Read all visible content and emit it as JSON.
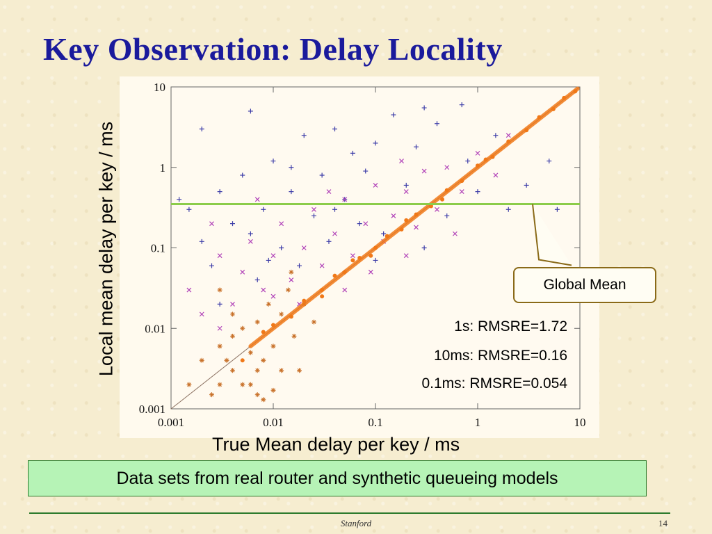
{
  "slide": {
    "title": "Key Observation: Delay Locality",
    "bottom_note": "Data sets from real router and synthetic queueing models",
    "footer": "Stanford",
    "page_number": "14"
  },
  "annotation": {
    "callout": "Global Mean",
    "rmsre_lines": [
      "1s: RMSRE=1.72",
      "10ms: RMSRE=0.16",
      "0.1ms: RMSRE=0.054"
    ]
  },
  "chart_data": {
    "type": "scatter",
    "xlabel": "True Mean delay per key / ms",
    "ylabel": "Local mean delay per key / ms",
    "xscale": "log",
    "yscale": "log",
    "xlim": [
      0.001,
      10
    ],
    "ylim": [
      0.001,
      10
    ],
    "x_ticks": [
      "0.001",
      "0.01",
      "0.1",
      "1",
      "10"
    ],
    "y_ticks": [
      "10",
      "1",
      "0.1",
      "0.01",
      "0.001"
    ],
    "grid": false,
    "reference_line": {
      "type": "diagonal",
      "from": [
        0.001,
        0.001
      ],
      "to": [
        10,
        10
      ]
    },
    "horizontal_line": {
      "y": 0.35,
      "color": "#8ccc4a"
    },
    "series": [
      {
        "marker": "+",
        "color": "#3c3ca8",
        "points": [
          [
            0.0015,
            0.3
          ],
          [
            0.002,
            0.12
          ],
          [
            0.0025,
            0.06
          ],
          [
            0.003,
            0.5
          ],
          [
            0.004,
            0.2
          ],
          [
            0.005,
            0.8
          ],
          [
            0.006,
            0.15
          ],
          [
            0.007,
            0.04
          ],
          [
            0.008,
            0.3
          ],
          [
            0.01,
            1.2
          ],
          [
            0.012,
            0.1
          ],
          [
            0.015,
            0.5
          ],
          [
            0.018,
            0.06
          ],
          [
            0.02,
            2.5
          ],
          [
            0.025,
            0.25
          ],
          [
            0.03,
            0.8
          ],
          [
            0.035,
            0.12
          ],
          [
            0.04,
            3.0
          ],
          [
            0.05,
            0.4
          ],
          [
            0.06,
            1.5
          ],
          [
            0.07,
            0.2
          ],
          [
            0.08,
            0.9
          ],
          [
            0.1,
            2.0
          ],
          [
            0.12,
            0.15
          ],
          [
            0.15,
            4.5
          ],
          [
            0.2,
            0.6
          ],
          [
            0.25,
            1.8
          ],
          [
            0.3,
            0.1
          ],
          [
            0.4,
            3.5
          ],
          [
            0.5,
            0.25
          ],
          [
            0.7,
            6.0
          ],
          [
            1.0,
            0.5
          ],
          [
            1.5,
            2.5
          ],
          [
            2.0,
            0.3
          ],
          [
            3.0,
            0.6
          ],
          [
            5.0,
            1.2
          ],
          [
            6.0,
            0.3
          ],
          [
            0.003,
            0.02
          ],
          [
            0.009,
            0.07
          ],
          [
            0.05,
            0.05
          ],
          [
            0.002,
            3.0
          ],
          [
            0.006,
            5.0
          ],
          [
            0.02,
            0.02
          ],
          [
            0.1,
            0.07
          ],
          [
            0.3,
            5.5
          ],
          [
            0.8,
            1.2
          ],
          [
            4.0,
            0.12
          ],
          [
            0.015,
            1.0
          ],
          [
            0.0012,
            0.4
          ],
          [
            0.04,
            0.3
          ]
        ]
      },
      {
        "marker": "×",
        "color": "#b040b8",
        "points": [
          [
            0.0015,
            0.03
          ],
          [
            0.002,
            0.015
          ],
          [
            0.003,
            0.08
          ],
          [
            0.004,
            0.02
          ],
          [
            0.005,
            0.05
          ],
          [
            0.006,
            0.12
          ],
          [
            0.008,
            0.03
          ],
          [
            0.01,
            0.08
          ],
          [
            0.012,
            0.2
          ],
          [
            0.015,
            0.04
          ],
          [
            0.02,
            0.1
          ],
          [
            0.025,
            0.3
          ],
          [
            0.03,
            0.06
          ],
          [
            0.04,
            0.15
          ],
          [
            0.05,
            0.4
          ],
          [
            0.06,
            0.08
          ],
          [
            0.08,
            0.2
          ],
          [
            0.1,
            0.6
          ],
          [
            0.12,
            0.12
          ],
          [
            0.15,
            0.25
          ],
          [
            0.2,
            0.5
          ],
          [
            0.25,
            0.18
          ],
          [
            0.3,
            0.9
          ],
          [
            0.4,
            0.3
          ],
          [
            0.5,
            1.0
          ],
          [
            0.7,
            0.5
          ],
          [
            1.0,
            1.5
          ],
          [
            1.5,
            0.8
          ],
          [
            2.0,
            2.5
          ],
          [
            0.0025,
            0.2
          ],
          [
            0.007,
            0.4
          ],
          [
            0.018,
            0.02
          ],
          [
            0.035,
            0.5
          ],
          [
            0.09,
            0.05
          ],
          [
            0.18,
            1.2
          ],
          [
            0.6,
            0.15
          ],
          [
            0.003,
            0.01
          ],
          [
            0.01,
            0.025
          ],
          [
            0.05,
            0.03
          ],
          [
            0.2,
            0.08
          ]
        ]
      },
      {
        "marker": "*",
        "color": "#c87028",
        "points": [
          [
            0.0015,
            0.002
          ],
          [
            0.002,
            0.004
          ],
          [
            0.0025,
            0.0015
          ],
          [
            0.003,
            0.006
          ],
          [
            0.003,
            0.002
          ],
          [
            0.004,
            0.003
          ],
          [
            0.004,
            0.008
          ],
          [
            0.005,
            0.002
          ],
          [
            0.005,
            0.01
          ],
          [
            0.006,
            0.005
          ],
          [
            0.007,
            0.0015
          ],
          [
            0.007,
            0.012
          ],
          [
            0.008,
            0.004
          ],
          [
            0.009,
            0.02
          ],
          [
            0.01,
            0.006
          ],
          [
            0.012,
            0.015
          ],
          [
            0.014,
            0.03
          ],
          [
            0.016,
            0.008
          ],
          [
            0.02,
            0.02
          ],
          [
            0.025,
            0.012
          ],
          [
            0.006,
            0.002
          ],
          [
            0.008,
            0.0013
          ],
          [
            0.01,
            0.0017
          ],
          [
            0.012,
            0.003
          ],
          [
            0.018,
            0.003
          ],
          [
            0.004,
            0.015
          ],
          [
            0.003,
            0.03
          ],
          [
            0.015,
            0.05
          ],
          [
            0.007,
            0.003
          ],
          [
            0.0035,
            0.004
          ]
        ]
      },
      {
        "marker": "•",
        "color": "#f07818",
        "points": [
          [
            0.005,
            0.004
          ],
          [
            0.008,
            0.009
          ],
          [
            0.01,
            0.011
          ],
          [
            0.015,
            0.014
          ],
          [
            0.02,
            0.022
          ],
          [
            0.03,
            0.03
          ],
          [
            0.04,
            0.045
          ],
          [
            0.05,
            0.05
          ],
          [
            0.07,
            0.075
          ],
          [
            0.1,
            0.1
          ],
          [
            0.13,
            0.14
          ],
          [
            0.18,
            0.17
          ],
          [
            0.25,
            0.26
          ],
          [
            0.35,
            0.33
          ],
          [
            0.5,
            0.52
          ],
          [
            0.7,
            0.68
          ],
          [
            1.0,
            1.05
          ],
          [
            1.4,
            1.35
          ],
          [
            2.0,
            2.1
          ],
          [
            3.0,
            2.9
          ],
          [
            4.0,
            4.2
          ],
          [
            5.5,
            5.3
          ],
          [
            7.0,
            7.3
          ],
          [
            9.0,
            8.8
          ],
          [
            0.06,
            0.07
          ],
          [
            0.09,
            0.08
          ],
          [
            0.03,
            0.025
          ],
          [
            0.2,
            0.22
          ],
          [
            0.45,
            0.4
          ],
          [
            1.2,
            1.25
          ]
        ]
      }
    ]
  }
}
